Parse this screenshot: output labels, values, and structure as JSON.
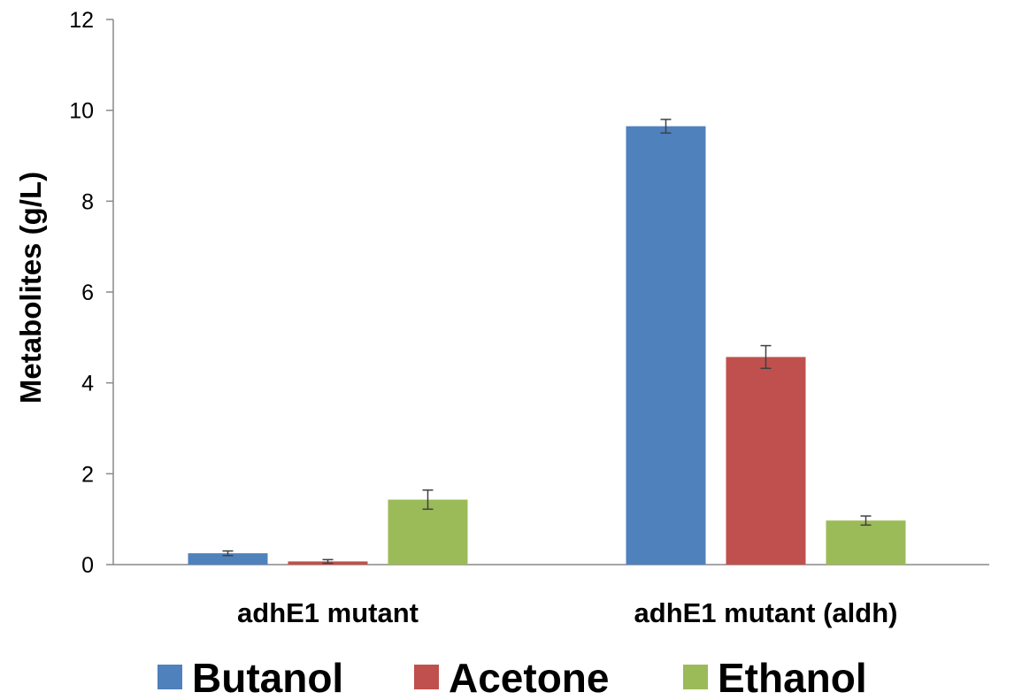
{
  "chart_data": {
    "type": "bar",
    "title": "",
    "xlabel": "",
    "ylabel": "Metabolites (g/L)",
    "ylim": [
      0,
      12
    ],
    "yticks": [
      0,
      2,
      4,
      6,
      8,
      10,
      12
    ],
    "grid": false,
    "legend_position": "bottom",
    "categories": [
      "adhE1 mutant",
      "adhE1 mutant (aldh)"
    ],
    "series": [
      {
        "name": "Butanol",
        "color": "#4F81BD",
        "values": [
          0.25,
          9.65
        ],
        "errors": [
          0.05,
          0.15
        ]
      },
      {
        "name": "Acetone",
        "color": "#C0504D",
        "values": [
          0.07,
          4.57
        ],
        "errors": [
          0.04,
          0.25
        ]
      },
      {
        "name": "Ethanol",
        "color": "#9BBB59",
        "values": [
          1.43,
          0.97
        ],
        "errors": [
          0.21,
          0.1
        ]
      }
    ]
  }
}
